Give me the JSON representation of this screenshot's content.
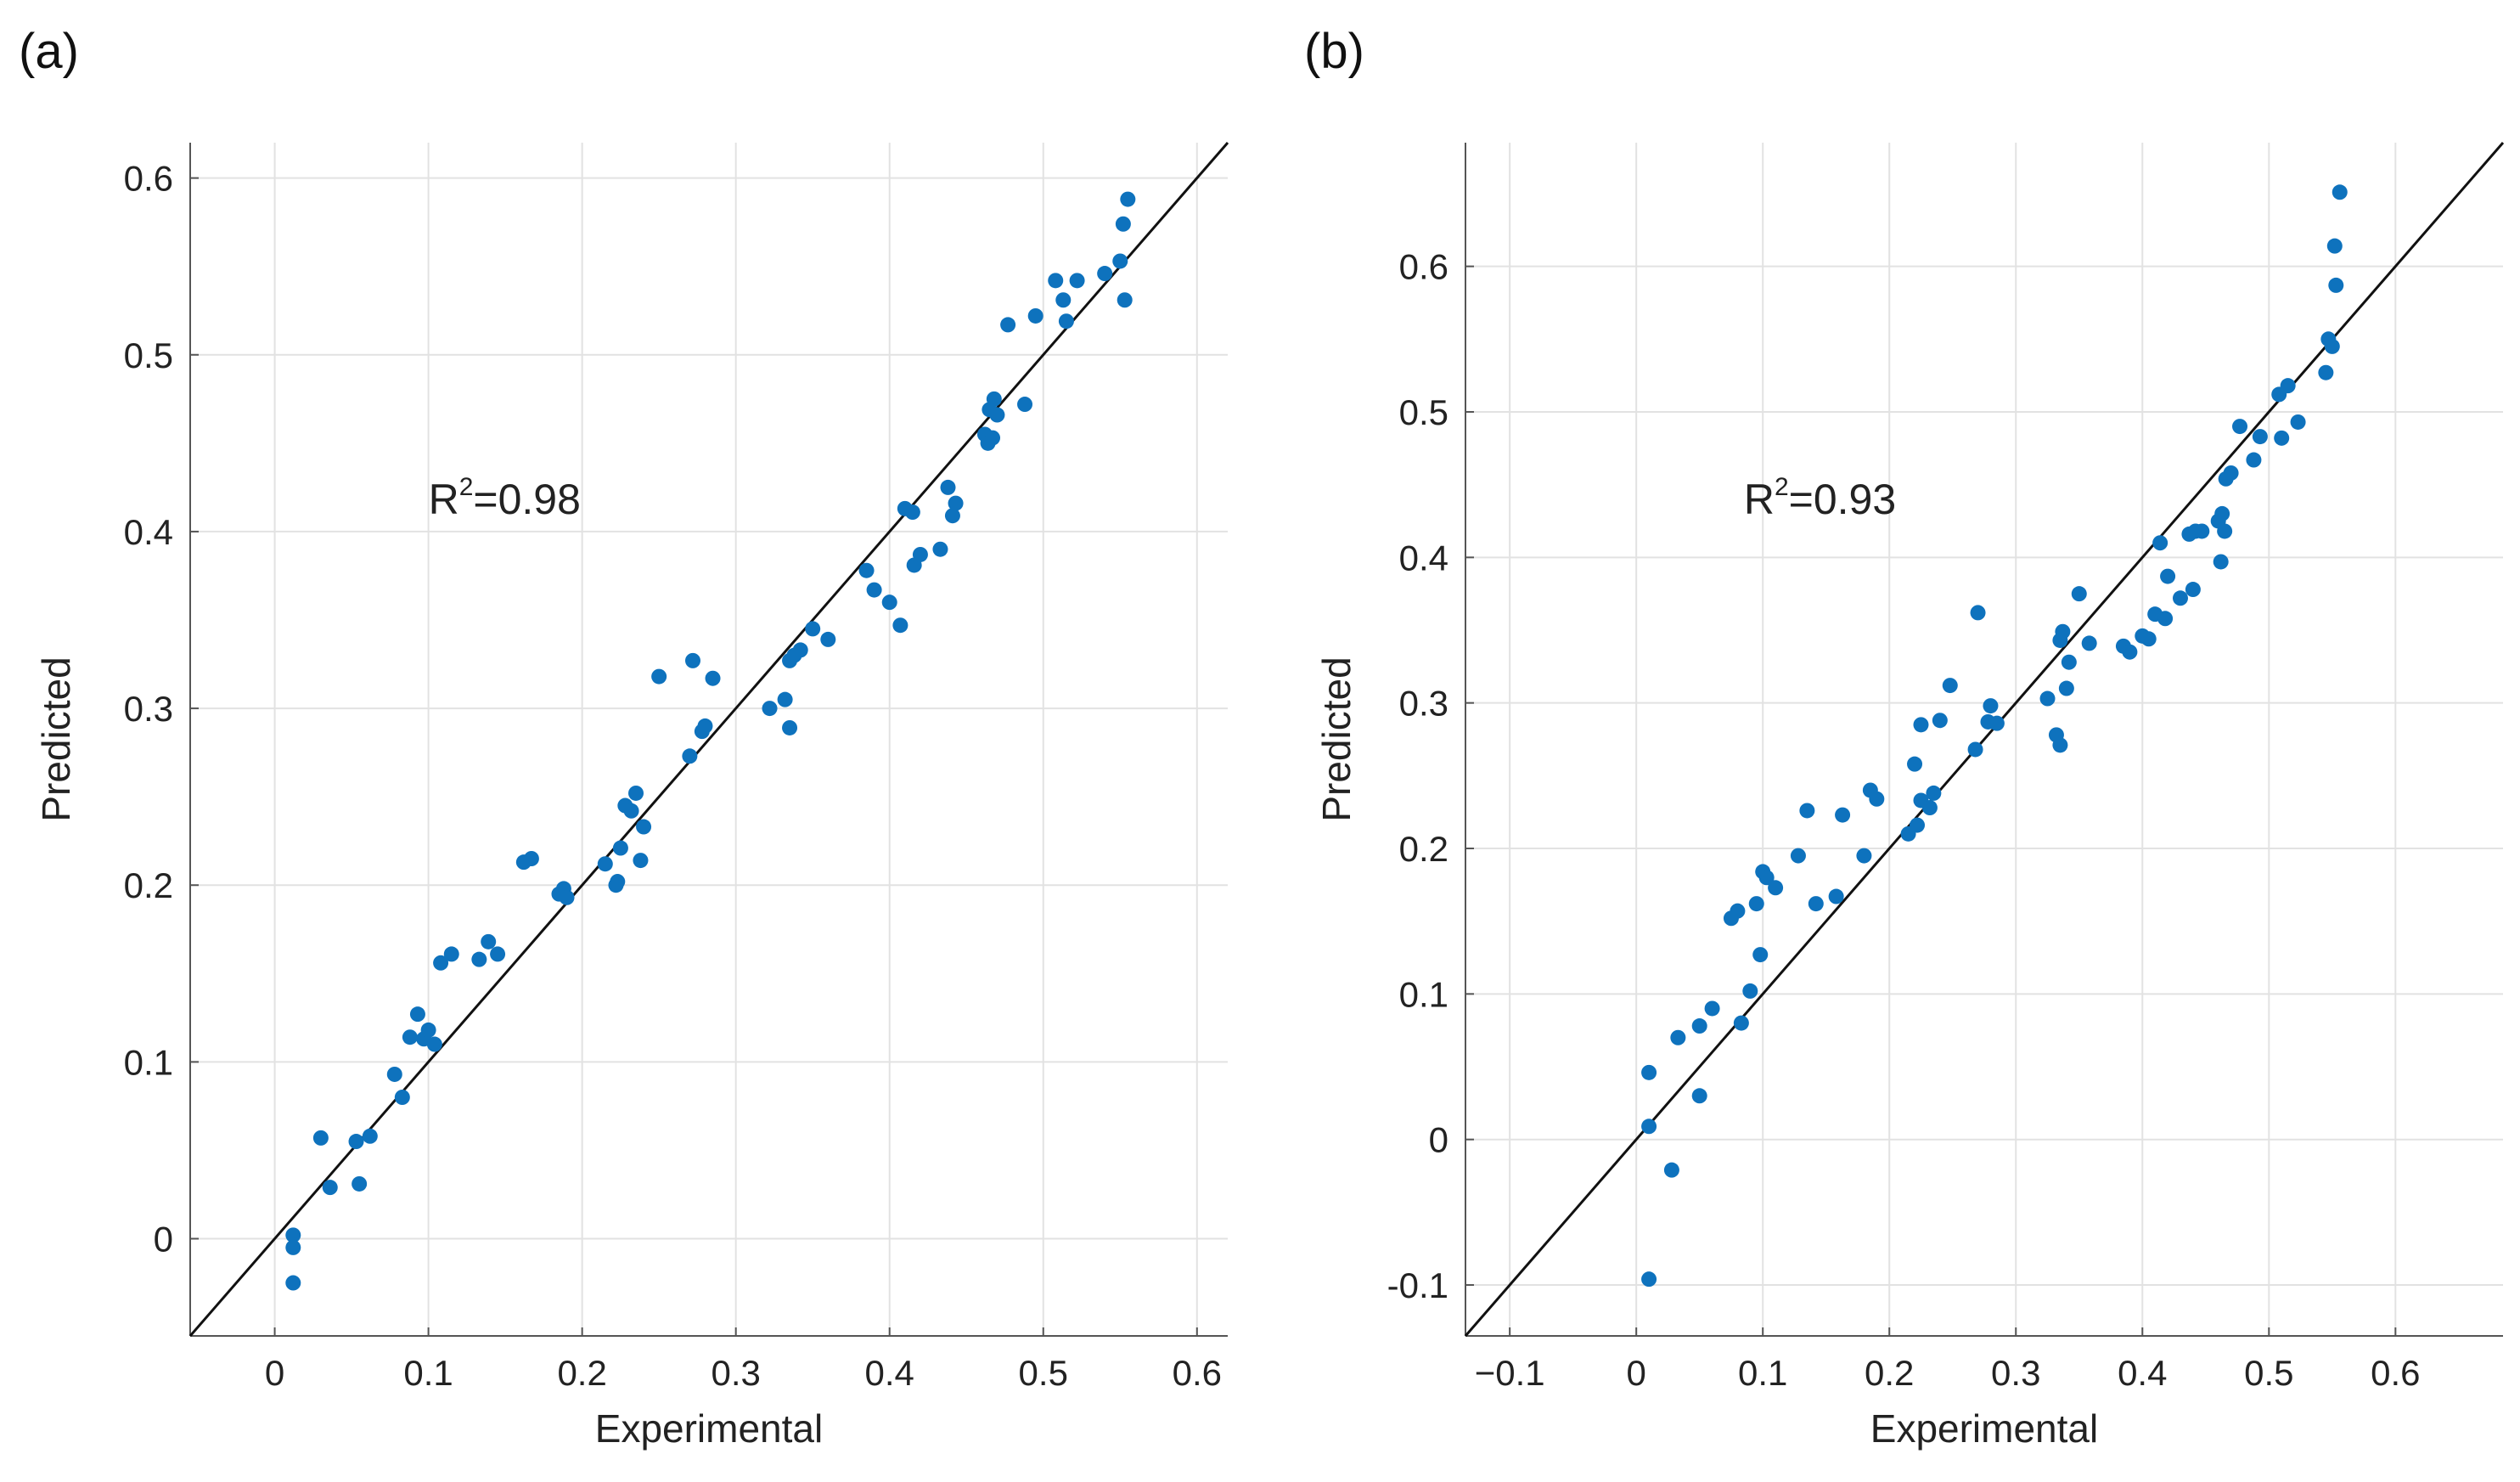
{
  "chart_data": [
    {
      "type": "scatter",
      "panel_label": "(a)",
      "title": "",
      "xlabel": "Experimental",
      "ylabel": "Predicted",
      "xlim": [
        -0.055,
        0.62
      ],
      "ylim": [
        -0.055,
        0.62
      ],
      "xticks": [
        0,
        0.1,
        0.2,
        0.3,
        0.4,
        0.5,
        0.6
      ],
      "xtick_labels": [
        "0",
        "0.1",
        "0.2",
        "0.3",
        "0.4",
        "0.5",
        "0.6"
      ],
      "yticks": [
        0,
        0.1,
        0.2,
        0.3,
        0.4,
        0.5,
        0.6
      ],
      "ytick_labels": [
        "0",
        "0.1",
        "0.2",
        "0.3",
        "0.4",
        "0.5",
        "0.6"
      ],
      "grid": true,
      "annotation": {
        "base": "R",
        "sup": "2",
        "rest": "=0.98",
        "x": 0.1,
        "y": 0.41
      },
      "reference_line": "y = x",
      "series": [
        {
          "name": "samples",
          "points": [
            [
              0.012,
              0.002
            ],
            [
              0.012,
              -0.005
            ],
            [
              0.012,
              -0.025
            ],
            [
              0.03,
              0.057
            ],
            [
              0.036,
              0.029
            ],
            [
              0.053,
              0.055
            ],
            [
              0.055,
              0.031
            ],
            [
              0.062,
              0.058
            ],
            [
              0.078,
              0.093
            ],
            [
              0.083,
              0.08
            ],
            [
              0.088,
              0.114
            ],
            [
              0.093,
              0.127
            ],
            [
              0.097,
              0.113
            ],
            [
              0.1,
              0.118
            ],
            [
              0.104,
              0.11
            ],
            [
              0.108,
              0.156
            ],
            [
              0.115,
              0.161
            ],
            [
              0.133,
              0.158
            ],
            [
              0.139,
              0.168
            ],
            [
              0.145,
              0.161
            ],
            [
              0.162,
              0.213
            ],
            [
              0.167,
              0.215
            ],
            [
              0.185,
              0.195
            ],
            [
              0.188,
              0.198
            ],
            [
              0.19,
              0.193
            ],
            [
              0.215,
              0.212
            ],
            [
              0.222,
              0.2
            ],
            [
              0.223,
              0.202
            ],
            [
              0.225,
              0.221
            ],
            [
              0.228,
              0.245
            ],
            [
              0.232,
              0.242
            ],
            [
              0.235,
              0.252
            ],
            [
              0.238,
              0.214
            ],
            [
              0.24,
              0.233
            ],
            [
              0.25,
              0.318
            ],
            [
              0.27,
              0.273
            ],
            [
              0.272,
              0.327
            ],
            [
              0.278,
              0.287
            ],
            [
              0.28,
              0.29
            ],
            [
              0.285,
              0.317
            ],
            [
              0.322,
              0.3
            ],
            [
              0.332,
              0.305
            ],
            [
              0.335,
              0.289
            ],
            [
              0.335,
              0.327
            ],
            [
              0.338,
              0.33
            ],
            [
              0.342,
              0.333
            ],
            [
              0.35,
              0.345
            ],
            [
              0.36,
              0.339
            ],
            [
              0.385,
              0.378
            ],
            [
              0.39,
              0.367
            ],
            [
              0.4,
              0.36
            ],
            [
              0.407,
              0.347
            ],
            [
              0.41,
              0.413
            ],
            [
              0.415,
              0.411
            ],
            [
              0.416,
              0.381
            ],
            [
              0.42,
              0.387
            ],
            [
              0.433,
              0.39
            ],
            [
              0.438,
              0.425
            ],
            [
              0.441,
              0.409
            ],
            [
              0.443,
              0.416
            ],
            [
              0.462,
              0.455
            ],
            [
              0.464,
              0.45
            ],
            [
              0.465,
              0.469
            ],
            [
              0.467,
              0.453
            ],
            [
              0.468,
              0.475
            ],
            [
              0.47,
              0.466
            ],
            [
              0.477,
              0.517
            ],
            [
              0.488,
              0.472
            ],
            [
              0.495,
              0.522
            ],
            [
              0.508,
              0.542
            ],
            [
              0.513,
              0.531
            ],
            [
              0.515,
              0.519
            ],
            [
              0.522,
              0.542
            ],
            [
              0.54,
              0.546
            ],
            [
              0.55,
              0.553
            ],
            [
              0.552,
              0.574
            ],
            [
              0.553,
              0.531
            ],
            [
              0.555,
              0.588
            ]
          ]
        }
      ]
    },
    {
      "type": "scatter",
      "panel_label": "(b)",
      "title": "",
      "xlabel": "Experimental",
      "ylabel": "Predicted",
      "xlim": [
        -0.135,
        0.685
      ],
      "ylim": [
        -0.135,
        0.685
      ],
      "xticks": [
        -0.1,
        0,
        0.1,
        0.2,
        0.3,
        0.4,
        0.5,
        0.6
      ],
      "xtick_labels": [
        "−0.1",
        "0",
        "0.1",
        "0.2",
        "0.3",
        "0.4",
        "0.5",
        "0.6"
      ],
      "yticks": [
        -0.1,
        0,
        0.1,
        0.2,
        0.3,
        0.4,
        0.5,
        0.6
      ],
      "ytick_labels": [
        "-0.1",
        "0",
        "0.1",
        "0.2",
        "0.3",
        "0.4",
        "0.5",
        "0.6"
      ],
      "grid": true,
      "annotation": {
        "base": "R",
        "sup": "2",
        "rest": "=0.93",
        "x": 0.085,
        "y": 0.43
      },
      "reference_line": "y = x",
      "series": [
        {
          "name": "samples",
          "points": [
            [
              0.01,
              0.046
            ],
            [
              0.01,
              0.009
            ],
            [
              0.01,
              -0.096
            ],
            [
              0.028,
              -0.021
            ],
            [
              0.033,
              0.07
            ],
            [
              0.05,
              0.078
            ],
            [
              0.05,
              0.03
            ],
            [
              0.06,
              0.09
            ],
            [
              0.075,
              0.152
            ],
            [
              0.08,
              0.157
            ],
            [
              0.083,
              0.08
            ],
            [
              0.09,
              0.102
            ],
            [
              0.095,
              0.162
            ],
            [
              0.098,
              0.127
            ],
            [
              0.1,
              0.184
            ],
            [
              0.103,
              0.18
            ],
            [
              0.11,
              0.173
            ],
            [
              0.128,
              0.195
            ],
            [
              0.135,
              0.226
            ],
            [
              0.142,
              0.162
            ],
            [
              0.158,
              0.167
            ],
            [
              0.163,
              0.223
            ],
            [
              0.18,
              0.195
            ],
            [
              0.185,
              0.24
            ],
            [
              0.19,
              0.234
            ],
            [
              0.215,
              0.21
            ],
            [
              0.22,
              0.258
            ],
            [
              0.222,
              0.216
            ],
            [
              0.225,
              0.233
            ],
            [
              0.225,
              0.285
            ],
            [
              0.232,
              0.228
            ],
            [
              0.235,
              0.238
            ],
            [
              0.24,
              0.288
            ],
            [
              0.248,
              0.312
            ],
            [
              0.268,
              0.268
            ],
            [
              0.27,
              0.362
            ],
            [
              0.278,
              0.287
            ],
            [
              0.28,
              0.298
            ],
            [
              0.285,
              0.286
            ],
            [
              0.325,
              0.303
            ],
            [
              0.332,
              0.278
            ],
            [
              0.335,
              0.271
            ],
            [
              0.335,
              0.343
            ],
            [
              0.337,
              0.349
            ],
            [
              0.34,
              0.31
            ],
            [
              0.342,
              0.328
            ],
            [
              0.35,
              0.375
            ],
            [
              0.358,
              0.341
            ],
            [
              0.385,
              0.339
            ],
            [
              0.39,
              0.335
            ],
            [
              0.4,
              0.346
            ],
            [
              0.405,
              0.344
            ],
            [
              0.41,
              0.361
            ],
            [
              0.414,
              0.41
            ],
            [
              0.418,
              0.358
            ],
            [
              0.42,
              0.387
            ],
            [
              0.43,
              0.372
            ],
            [
              0.437,
              0.416
            ],
            [
              0.44,
              0.378
            ],
            [
              0.442,
              0.418
            ],
            [
              0.447,
              0.418
            ],
            [
              0.46,
              0.425
            ],
            [
              0.462,
              0.397
            ],
            [
              0.463,
              0.43
            ],
            [
              0.465,
              0.418
            ],
            [
              0.466,
              0.454
            ],
            [
              0.47,
              0.458
            ],
            [
              0.477,
              0.49
            ],
            [
              0.488,
              0.467
            ],
            [
              0.493,
              0.483
            ],
            [
              0.508,
              0.512
            ],
            [
              0.51,
              0.482
            ],
            [
              0.515,
              0.518
            ],
            [
              0.523,
              0.493
            ],
            [
              0.545,
              0.527
            ],
            [
              0.547,
              0.55
            ],
            [
              0.55,
              0.545
            ],
            [
              0.552,
              0.614
            ],
            [
              0.553,
              0.587
            ],
            [
              0.556,
              0.651
            ]
          ]
        }
      ]
    }
  ]
}
